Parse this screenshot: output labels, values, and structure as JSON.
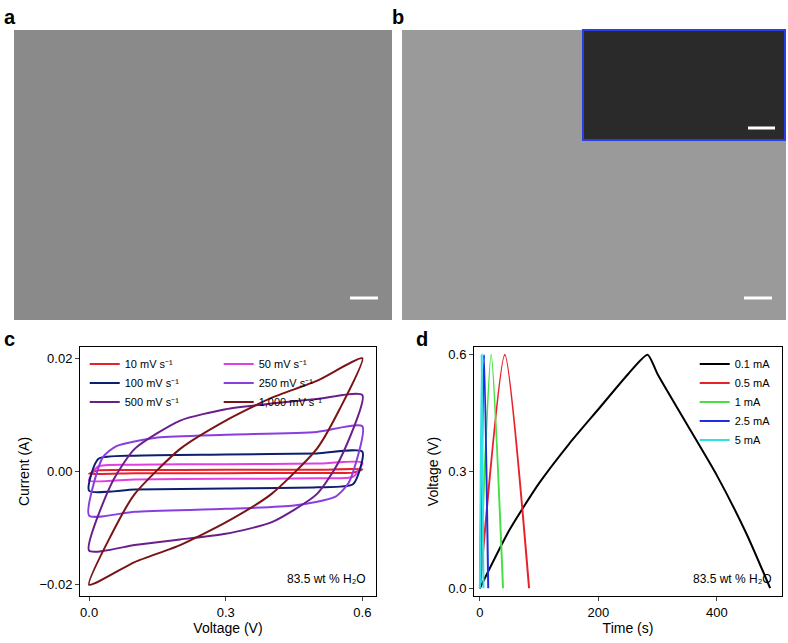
{
  "image_panels": [
    {
      "label": "a"
    },
    {
      "label": "b"
    }
  ],
  "chart_data": [
    {
      "type": "line",
      "panel": "c",
      "x_label": "Voltage (V)",
      "y_label": "Current (A)",
      "annotations": [
        "83.5 wt % H₂O"
      ],
      "xlim": [
        -0.02,
        0.63
      ],
      "xticks": [
        {
          "value": 0,
          "label": "0.0"
        },
        {
          "value": 0.3,
          "label": "0.3"
        },
        {
          "value": 0.6,
          "label": "0.6"
        }
      ],
      "ylim": [
        -0.022,
        0.022
      ],
      "yticks": [
        {
          "value": -0.02,
          "label": "−0.02"
        },
        {
          "value": 0,
          "label": "0.00"
        },
        {
          "value": 0.02,
          "label": "0.02"
        }
      ],
      "legend": "upper left",
      "series": [
        {
          "name": "10 mV s⁻¹",
          "color": "#e8202a",
          "x": [
            0,
            0.02,
            0.1,
            0.3,
            0.5,
            0.6,
            0.58,
            0.5,
            0.3,
            0.1,
            0
          ],
          "values": [
            -0.0004,
            0.0002,
            0.00025,
            0.0003,
            0.0003,
            0.0004,
            -0.0002,
            -0.00025,
            -0.0003,
            -0.0003,
            -0.0004
          ]
        },
        {
          "name": "50 mV s⁻¹",
          "color": "#e040e0",
          "x": [
            0,
            0.02,
            0.1,
            0.3,
            0.5,
            0.6,
            0.58,
            0.5,
            0.3,
            0.1,
            0
          ],
          "values": [
            -0.0016,
            0.0009,
            0.0012,
            0.0013,
            0.0014,
            0.0016,
            -0.0009,
            -0.0012,
            -0.0013,
            -0.0014,
            -0.0016
          ]
        },
        {
          "name": "100 mV s⁻¹",
          "color": "#0d1e6e",
          "x": [
            0,
            0.02,
            0.1,
            0.3,
            0.5,
            0.6,
            0.58,
            0.5,
            0.3,
            0.1,
            0
          ],
          "values": [
            -0.0034,
            0.0022,
            0.0028,
            0.003,
            0.0032,
            0.0035,
            -0.0022,
            -0.0028,
            -0.003,
            -0.0032,
            -0.0034
          ]
        },
        {
          "name": "250 mV s⁻¹",
          "color": "#8a3ee0",
          "x": [
            0,
            0.03,
            0.06,
            0.15,
            0.3,
            0.5,
            0.6,
            0.57,
            0.54,
            0.45,
            0.3,
            0.1,
            0
          ],
          "values": [
            -0.0078,
            0.0025,
            0.0045,
            0.006,
            0.0065,
            0.007,
            0.008,
            -0.002,
            -0.0045,
            -0.006,
            -0.0066,
            -0.0071,
            -0.0078
          ]
        },
        {
          "name": "500 mV s⁻¹",
          "color": "#6a1e8a",
          "x": [
            0,
            0.05,
            0.1,
            0.2,
            0.3,
            0.4,
            0.5,
            0.6,
            0.55,
            0.5,
            0.4,
            0.3,
            0.2,
            0.1,
            0
          ],
          "values": [
            -0.014,
            -0.002,
            0.004,
            0.009,
            0.011,
            0.012,
            0.0128,
            0.0135,
            0.002,
            -0.004,
            -0.009,
            -0.011,
            -0.012,
            -0.013,
            -0.014
          ]
        },
        {
          "name": "1,000 mV s⁻¹",
          "color": "#7a1416",
          "x": [
            0,
            0.05,
            0.1,
            0.2,
            0.3,
            0.4,
            0.5,
            0.6,
            0.55,
            0.5,
            0.4,
            0.3,
            0.2,
            0.1,
            0
          ],
          "values": [
            -0.02,
            -0.011,
            -0.004,
            0.004,
            0.009,
            0.013,
            0.016,
            0.02,
            0.011,
            0.004,
            -0.004,
            -0.009,
            -0.013,
            -0.016,
            -0.02
          ]
        }
      ]
    },
    {
      "type": "line",
      "panel": "d",
      "x_label": "Time (s)",
      "y_label": "Voltage (V)",
      "annotations": [
        "83.5 wt % H₂O"
      ],
      "xlim": [
        -10,
        510
      ],
      "xticks": [
        0,
        200,
        400
      ],
      "ylim": [
        -0.02,
        0.62
      ],
      "yticks": [
        {
          "value": 0,
          "label": "0.0"
        },
        {
          "value": 0.3,
          "label": "0.3"
        },
        {
          "value": 0.6,
          "label": "0.6"
        }
      ],
      "legend": "upper right",
      "series": [
        {
          "name": "0.1 mA",
          "color": "#000000",
          "x": [
            0,
            50,
            100,
            150,
            200,
            250,
            283,
            300,
            350,
            400,
            450,
            490
          ],
          "values": [
            0,
            0.15,
            0.27,
            0.37,
            0.46,
            0.55,
            0.6,
            0.55,
            0.42,
            0.29,
            0.14,
            0
          ]
        },
        {
          "name": "0.5 mA",
          "color": "#e8202a",
          "x": [
            0,
            42,
            83
          ],
          "values": [
            0,
            0.6,
            0
          ]
        },
        {
          "name": "1 mA",
          "color": "#44e044",
          "x": [
            0,
            19,
            39
          ],
          "values": [
            0,
            0.6,
            0
          ]
        },
        {
          "name": "2.5 mA",
          "color": "#1c2ee0",
          "x": [
            0,
            7,
            14
          ],
          "values": [
            0,
            0.6,
            0
          ]
        },
        {
          "name": "5 mA",
          "color": "#30e0e8",
          "x": [
            0,
            3,
            6
          ],
          "values": [
            0,
            0.6,
            0
          ]
        }
      ]
    }
  ]
}
